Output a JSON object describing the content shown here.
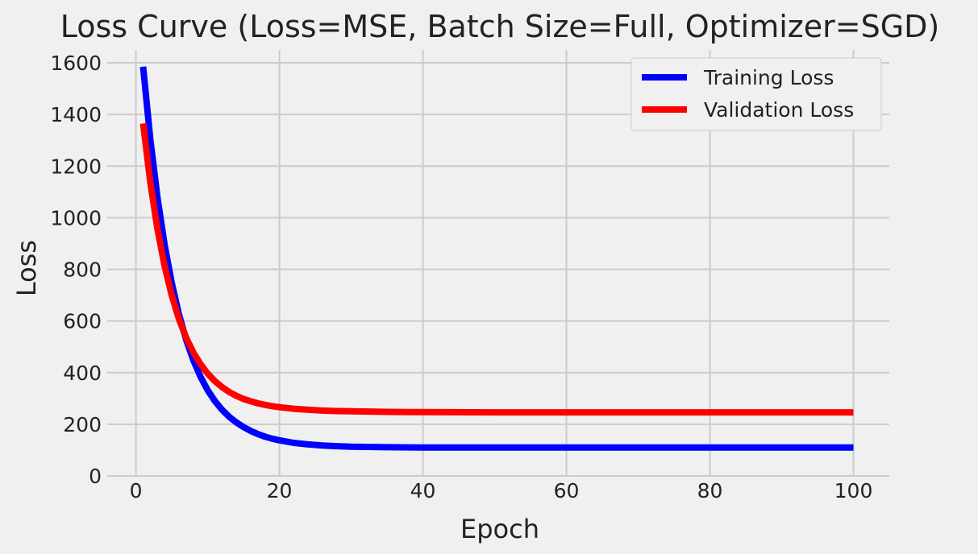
{
  "chart_data": {
    "type": "line",
    "title": "Loss Curve (Loss=MSE, Batch Size=Full, Optimizer=SGD)",
    "xlabel": "Epoch",
    "ylabel": "Loss",
    "xlim": [
      -4,
      105
    ],
    "ylim": [
      0,
      1650
    ],
    "xticks": [
      0,
      20,
      40,
      60,
      80,
      100
    ],
    "yticks": [
      0,
      200,
      400,
      600,
      800,
      1000,
      1200,
      1400,
      1600
    ],
    "grid": true,
    "legend_position": "top-right",
    "series": [
      {
        "name": "Training Loss",
        "color": "#0000ff",
        "x": [
          1,
          2,
          3,
          4,
          5,
          6,
          7,
          8,
          9,
          10,
          11,
          12,
          13,
          14,
          15,
          16,
          17,
          18,
          19,
          20,
          22,
          24,
          26,
          28,
          30,
          35,
          40,
          50,
          60,
          70,
          80,
          90,
          100
        ],
        "values": [
          1585,
          1305,
          1078,
          895,
          746,
          625,
          527,
          448,
          384,
          332,
          290,
          256,
          229,
          207,
          189,
          174,
          162,
          152,
          144,
          138,
          128,
          122,
          118,
          115,
          113,
          111,
          110,
          110,
          110,
          110,
          110,
          110,
          110
        ]
      },
      {
        "name": "Validation Loss",
        "color": "#ff0000",
        "x": [
          1,
          2,
          3,
          4,
          5,
          6,
          7,
          8,
          9,
          10,
          11,
          12,
          13,
          14,
          15,
          16,
          17,
          18,
          19,
          20,
          22,
          24,
          26,
          28,
          30,
          35,
          40,
          50,
          60,
          70,
          80,
          90,
          100
        ],
        "values": [
          1365,
          1137,
          956,
          812,
          698,
          607,
          535,
          478,
          433,
          396,
          367,
          344,
          325,
          310,
          298,
          289,
          281,
          275,
          270,
          266,
          260,
          256,
          253,
          251,
          250,
          248,
          247,
          246,
          246,
          246,
          246,
          246,
          246
        ]
      }
    ]
  }
}
